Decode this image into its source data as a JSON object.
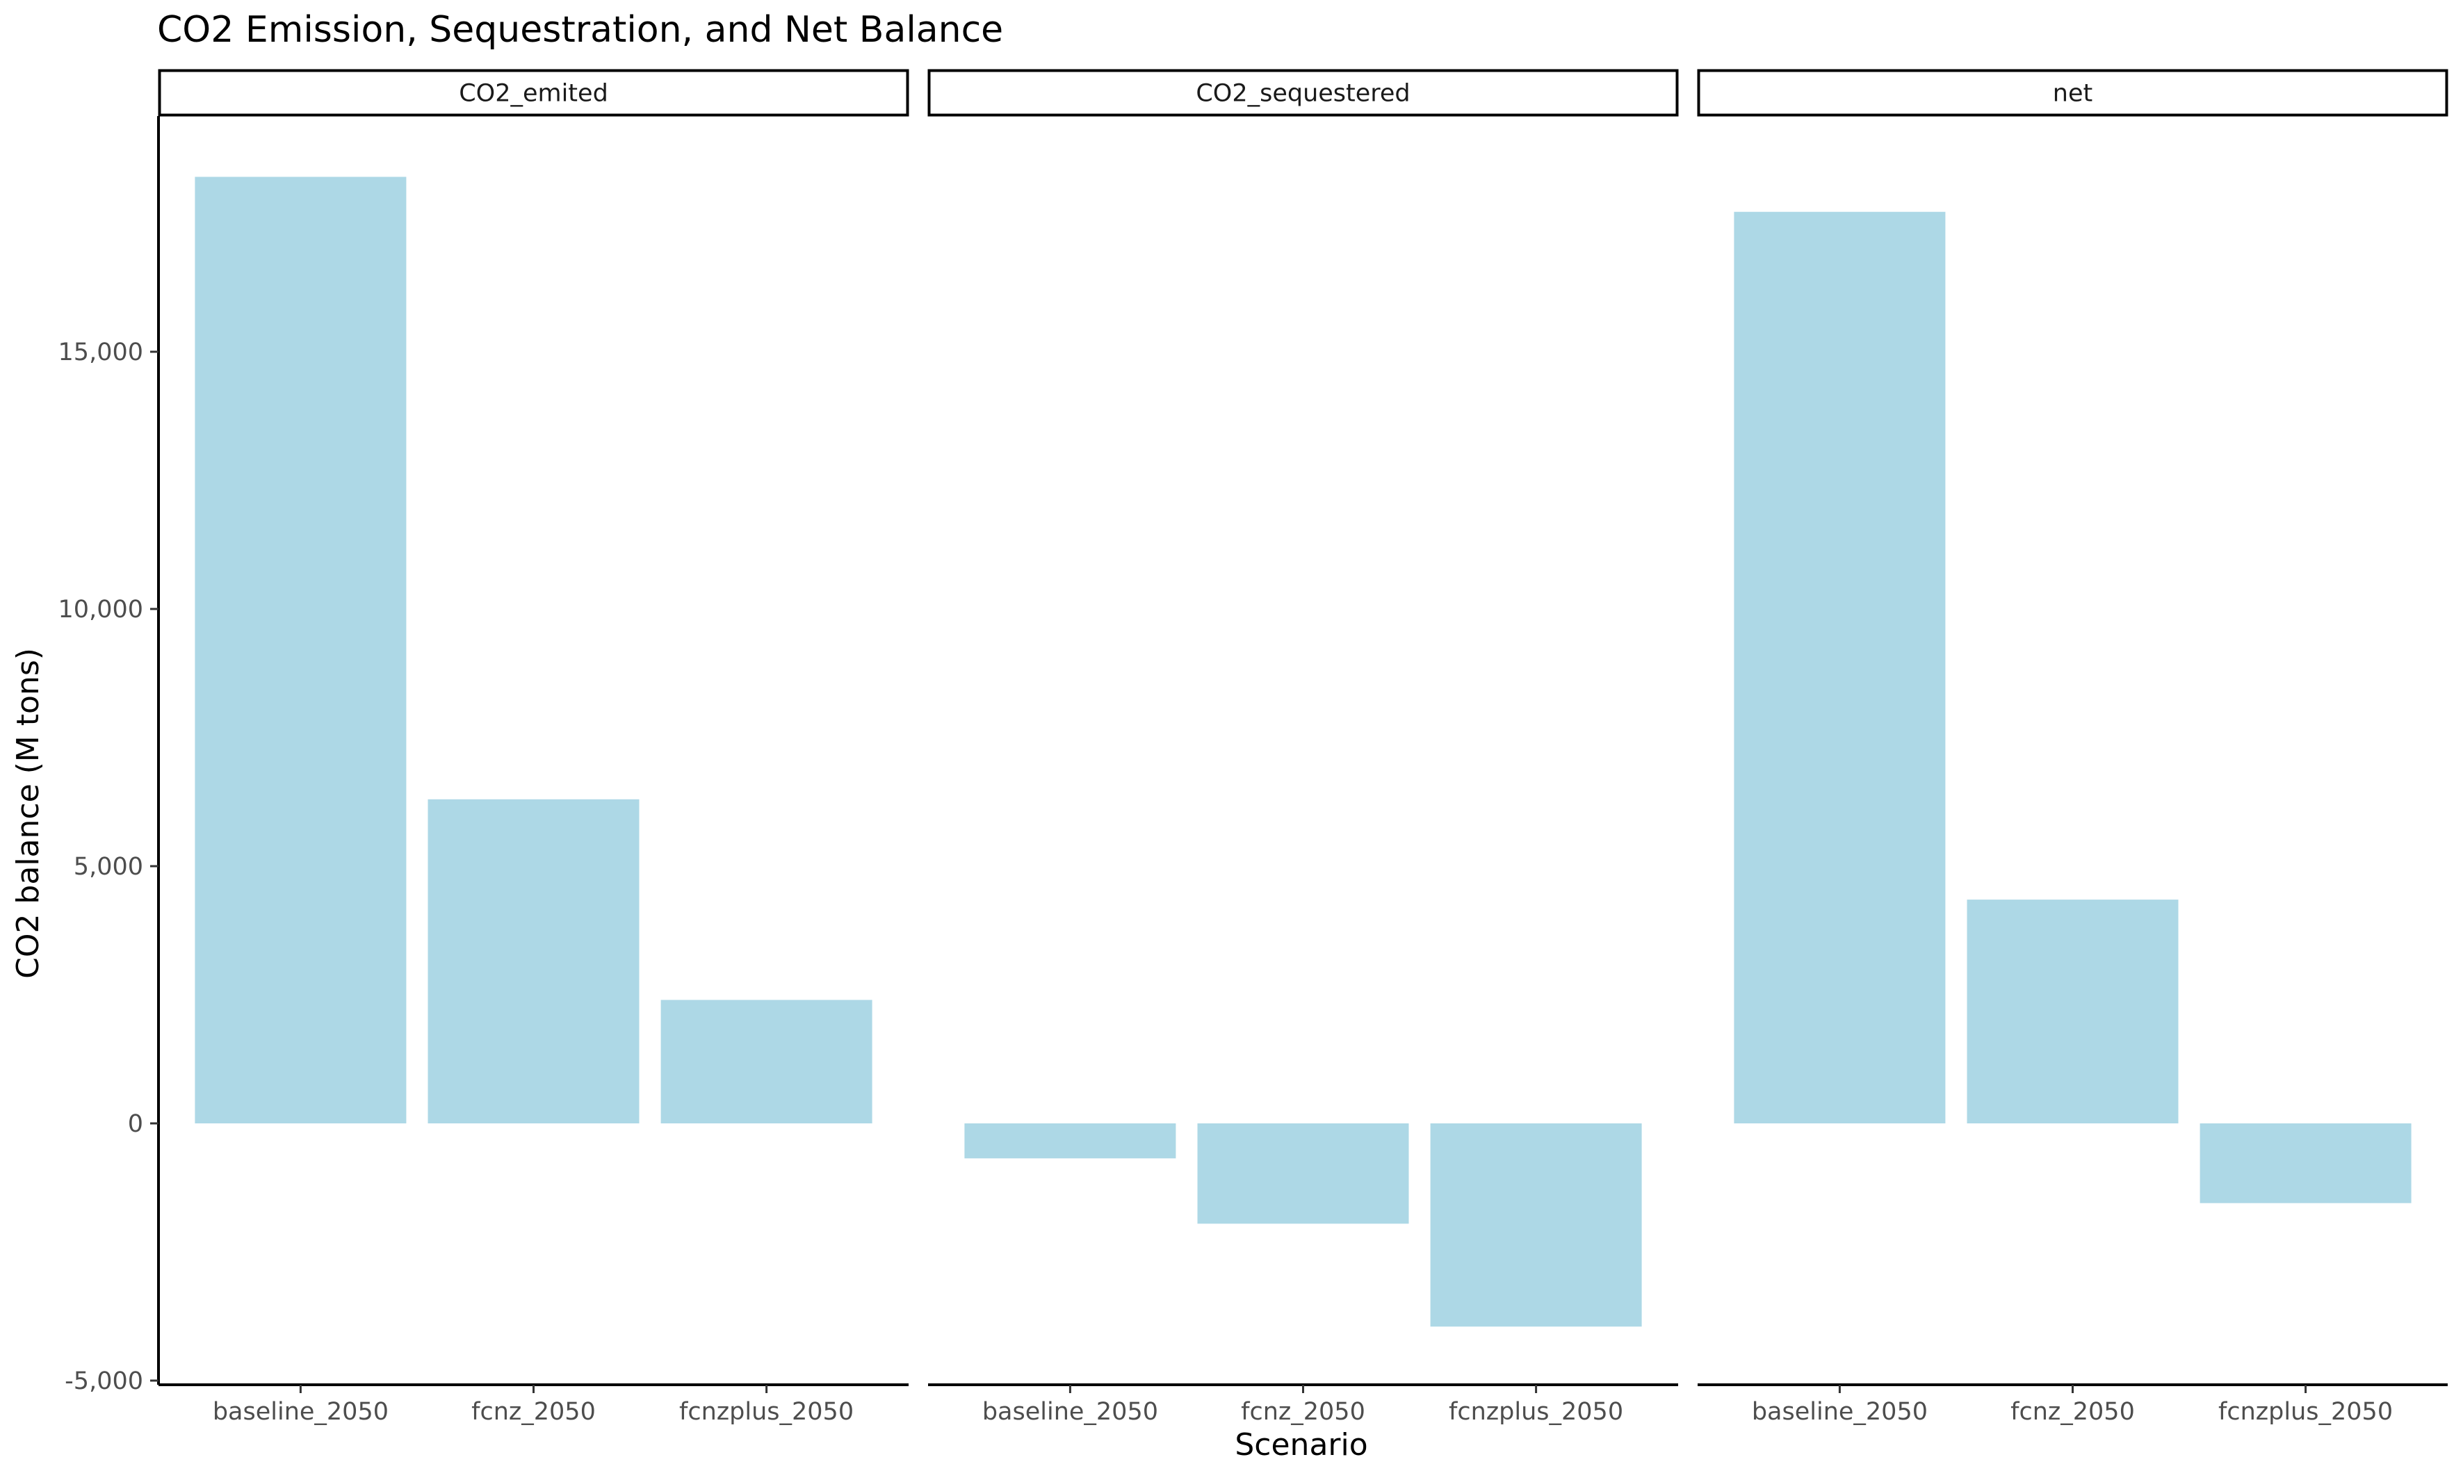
{
  "chart_data": {
    "type": "bar",
    "title": "CO2 Emission, Sequestration, and Net Balance",
    "xlabel": "Scenario",
    "ylabel": "CO2 balance (M tons)",
    "ylim": [
      -5000,
      19500
    ],
    "yticks": [
      -5000,
      0,
      5000,
      10000,
      15000
    ],
    "ytick_labels": [
      "-5,000",
      "0",
      "5,000",
      "10,000",
      "15,000"
    ],
    "bar_color": "#add8e6",
    "grid": false,
    "legend": "none",
    "categories": [
      "baseline_2050",
      "fcnz_2050",
      "fcnzplus_2050"
    ],
    "facets": [
      {
        "name": "CO2_emited",
        "values": [
          18400,
          6300,
          2400
        ]
      },
      {
        "name": "CO2_sequestered",
        "values": [
          -680,
          -1950,
          -3950
        ]
      },
      {
        "name": "net",
        "values": [
          17720,
          4350,
          -1550
        ]
      }
    ]
  }
}
